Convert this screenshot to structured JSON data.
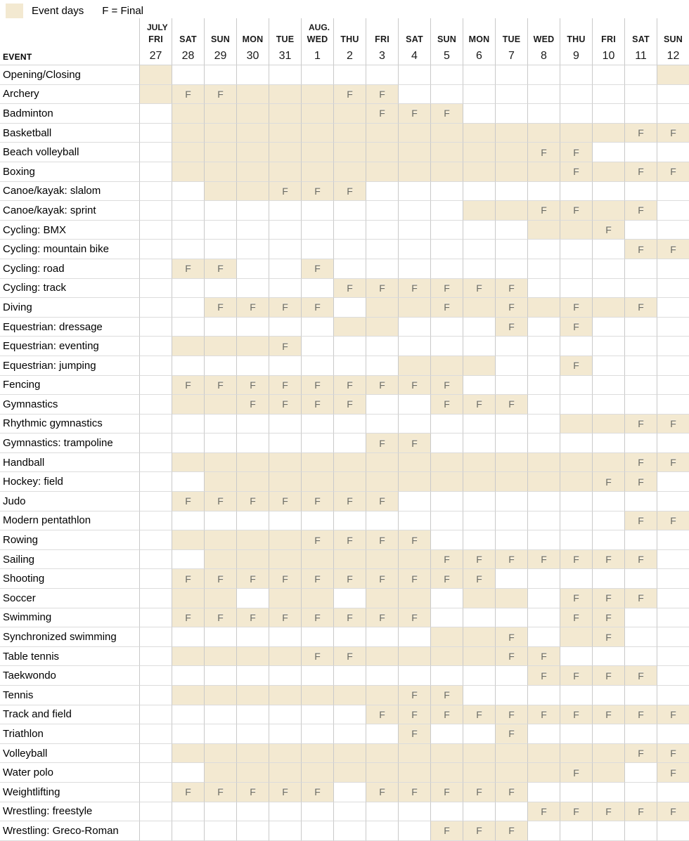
{
  "legend": {
    "event_days_label": "Event days",
    "final_label": "F = Final"
  },
  "colors": {
    "event_day_fill": "#f3e9d1",
    "grid_line_vertical": "#c9c9c9",
    "grid_line_horizontal": "#dcdcdc",
    "final_letter": "#6b6a60",
    "text": "#000000"
  },
  "chart_data": {
    "type": "table",
    "event_header": "EVENT",
    "cell_legend": {
      "s": "event day",
      "F": "final",
      "": "no event"
    },
    "columns": [
      {
        "month": "JULY",
        "day": "FRI",
        "date": "27"
      },
      {
        "month": "",
        "day": "SAT",
        "date": "28"
      },
      {
        "month": "",
        "day": "SUN",
        "date": "29"
      },
      {
        "month": "",
        "day": "MON",
        "date": "30"
      },
      {
        "month": "",
        "day": "TUE",
        "date": "31"
      },
      {
        "month": "AUG.",
        "day": "WED",
        "date": "1"
      },
      {
        "month": "",
        "day": "THU",
        "date": "2"
      },
      {
        "month": "",
        "day": "FRI",
        "date": "3"
      },
      {
        "month": "",
        "day": "SAT",
        "date": "4"
      },
      {
        "month": "",
        "day": "SUN",
        "date": "5"
      },
      {
        "month": "",
        "day": "MON",
        "date": "6"
      },
      {
        "month": "",
        "day": "TUE",
        "date": "7"
      },
      {
        "month": "",
        "day": "WED",
        "date": "8"
      },
      {
        "month": "",
        "day": "THU",
        "date": "9"
      },
      {
        "month": "",
        "day": "FRI",
        "date": "10"
      },
      {
        "month": "",
        "day": "SAT",
        "date": "11"
      },
      {
        "month": "",
        "day": "SUN",
        "date": "12"
      }
    ],
    "rows": [
      {
        "label": "Opening/Closing",
        "cells": [
          "s",
          "",
          "",
          "",
          "",
          "",
          "",
          "",
          "",
          "",
          "",
          "",
          "",
          "",
          "",
          "",
          "s"
        ]
      },
      {
        "label": "Archery",
        "cells": [
          "s",
          "F",
          "F",
          "s",
          "s",
          "s",
          "F",
          "F",
          "",
          "",
          "",
          "",
          "",
          "",
          "",
          "",
          ""
        ]
      },
      {
        "label": "Badminton",
        "cells": [
          "",
          "s",
          "s",
          "s",
          "s",
          "s",
          "s",
          "F",
          "F",
          "F",
          "",
          "",
          "",
          "",
          "",
          "",
          ""
        ]
      },
      {
        "label": "Basketball",
        "cells": [
          "",
          "s",
          "s",
          "s",
          "s",
          "s",
          "s",
          "s",
          "s",
          "s",
          "s",
          "s",
          "s",
          "s",
          "s",
          "F",
          "F"
        ]
      },
      {
        "label": "Beach volleyball",
        "cells": [
          "",
          "s",
          "s",
          "s",
          "s",
          "s",
          "s",
          "s",
          "s",
          "s",
          "s",
          "s",
          "F",
          "F",
          "",
          "",
          ""
        ]
      },
      {
        "label": "Boxing",
        "cells": [
          "",
          "s",
          "s",
          "s",
          "s",
          "s",
          "s",
          "s",
          "s",
          "s",
          "s",
          "s",
          "s",
          "F",
          "s",
          "F",
          "F"
        ]
      },
      {
        "label": "Canoe/kayak: slalom",
        "cells": [
          "",
          "",
          "s",
          "s",
          "F",
          "F",
          "F",
          "",
          "",
          "",
          "",
          "",
          "",
          "",
          "",
          "",
          ""
        ]
      },
      {
        "label": "Canoe/kayak: sprint",
        "cells": [
          "",
          "",
          "",
          "",
          "",
          "",
          "",
          "",
          "",
          "",
          "s",
          "s",
          "F",
          "F",
          "s",
          "F",
          ""
        ]
      },
      {
        "label": "Cycling: BMX",
        "cells": [
          "",
          "",
          "",
          "",
          "",
          "",
          "",
          "",
          "",
          "",
          "",
          "",
          "s",
          "s",
          "F",
          "",
          ""
        ]
      },
      {
        "label": "Cycling: mountain bike",
        "cells": [
          "",
          "",
          "",
          "",
          "",
          "",
          "",
          "",
          "",
          "",
          "",
          "",
          "",
          "",
          "",
          "F",
          "F"
        ]
      },
      {
        "label": "Cycling: road",
        "cells": [
          "",
          "F",
          "F",
          "",
          "",
          "F",
          "",
          "",
          "",
          "",
          "",
          "",
          "",
          "",
          "",
          "",
          ""
        ]
      },
      {
        "label": "Cycling: track",
        "cells": [
          "",
          "",
          "",
          "",
          "",
          "",
          "F",
          "F",
          "F",
          "F",
          "F",
          "F",
          "",
          "",
          "",
          "",
          ""
        ]
      },
      {
        "label": "Diving",
        "cells": [
          "",
          "",
          "F",
          "F",
          "F",
          "F",
          "",
          "s",
          "s",
          "F",
          "s",
          "F",
          "s",
          "F",
          "s",
          "F",
          ""
        ]
      },
      {
        "label": "Equestrian: dressage",
        "cells": [
          "",
          "",
          "",
          "",
          "",
          "",
          "s",
          "s",
          "",
          "",
          "",
          "F",
          "",
          "F",
          "",
          "",
          ""
        ]
      },
      {
        "label": "Equestrian: eventing",
        "cells": [
          "",
          "s",
          "s",
          "s",
          "F",
          "",
          "",
          "",
          "",
          "",
          "",
          "",
          "",
          "",
          "",
          "",
          ""
        ]
      },
      {
        "label": "Equestrian: jumping",
        "cells": [
          "",
          "",
          "",
          "",
          "",
          "",
          "",
          "",
          "s",
          "s",
          "s",
          "",
          "",
          "F",
          "",
          "",
          ""
        ]
      },
      {
        "label": "Fencing",
        "cells": [
          "",
          "F",
          "F",
          "F",
          "F",
          "F",
          "F",
          "F",
          "F",
          "F",
          "",
          "",
          "",
          "",
          "",
          "",
          ""
        ]
      },
      {
        "label": "Gymnastics",
        "cells": [
          "",
          "s",
          "s",
          "F",
          "F",
          "F",
          "F",
          "",
          "",
          "F",
          "F",
          "F",
          "",
          "",
          "",
          "",
          ""
        ]
      },
      {
        "label": "Rhythmic gymnastics",
        "cells": [
          "",
          "",
          "",
          "",
          "",
          "",
          "",
          "",
          "",
          "",
          "",
          "",
          "",
          "s",
          "s",
          "F",
          "F"
        ]
      },
      {
        "label": "Gymnastics: trampoline",
        "cells": [
          "",
          "",
          "",
          "",
          "",
          "",
          "",
          "F",
          "F",
          "",
          "",
          "",
          "",
          "",
          "",
          "",
          ""
        ]
      },
      {
        "label": "Handball",
        "cells": [
          "",
          "s",
          "s",
          "s",
          "s",
          "s",
          "s",
          "s",
          "s",
          "s",
          "s",
          "s",
          "s",
          "s",
          "s",
          "F",
          "F"
        ]
      },
      {
        "label": "Hockey: field",
        "cells": [
          "",
          "",
          "s",
          "s",
          "s",
          "s",
          "s",
          "s",
          "s",
          "s",
          "s",
          "s",
          "s",
          "s",
          "F",
          "F",
          ""
        ]
      },
      {
        "label": "Judo",
        "cells": [
          "",
          "F",
          "F",
          "F",
          "F",
          "F",
          "F",
          "F",
          "",
          "",
          "",
          "",
          "",
          "",
          "",
          "",
          ""
        ]
      },
      {
        "label": "Modern pentathlon",
        "cells": [
          "",
          "",
          "",
          "",
          "",
          "",
          "",
          "",
          "",
          "",
          "",
          "",
          "",
          "",
          "",
          "F",
          "F"
        ]
      },
      {
        "label": "Rowing",
        "cells": [
          "",
          "s",
          "s",
          "s",
          "s",
          "F",
          "F",
          "F",
          "F",
          "",
          "",
          "",
          "",
          "",
          "",
          "",
          ""
        ]
      },
      {
        "label": "Sailing",
        "cells": [
          "",
          "",
          "s",
          "s",
          "s",
          "s",
          "s",
          "s",
          "s",
          "F",
          "F",
          "F",
          "F",
          "F",
          "F",
          "F",
          ""
        ]
      },
      {
        "label": "Shooting",
        "cells": [
          "",
          "F",
          "F",
          "F",
          "F",
          "F",
          "F",
          "F",
          "F",
          "F",
          "F",
          "",
          "",
          "",
          "",
          "",
          ""
        ]
      },
      {
        "label": "Soccer",
        "cells": [
          "",
          "s",
          "s",
          "",
          "s",
          "s",
          "",
          "s",
          "s",
          "",
          "s",
          "s",
          "",
          "F",
          "F",
          "F",
          ""
        ]
      },
      {
        "label": "Swimming",
        "cells": [
          "",
          "F",
          "F",
          "F",
          "F",
          "F",
          "F",
          "F",
          "F",
          "",
          "",
          "",
          "",
          "F",
          "F",
          "",
          ""
        ]
      },
      {
        "label": "Synchronized swimming",
        "cells": [
          "",
          "",
          "",
          "",
          "",
          "",
          "",
          "",
          "",
          "s",
          "s",
          "F",
          "",
          "s",
          "F",
          "",
          ""
        ]
      },
      {
        "label": "Table tennis",
        "cells": [
          "",
          "s",
          "s",
          "s",
          "s",
          "F",
          "F",
          "s",
          "s",
          "s",
          "s",
          "F",
          "F",
          "",
          "",
          "",
          ""
        ]
      },
      {
        "label": "Taekwondo",
        "cells": [
          "",
          "",
          "",
          "",
          "",
          "",
          "",
          "",
          "",
          "",
          "",
          "",
          "F",
          "F",
          "F",
          "F",
          ""
        ]
      },
      {
        "label": "Tennis",
        "cells": [
          "",
          "s",
          "s",
          "s",
          "s",
          "s",
          "s",
          "s",
          "F",
          "F",
          "",
          "",
          "",
          "",
          "",
          "",
          ""
        ]
      },
      {
        "label": "Track and field",
        "cells": [
          "",
          "",
          "",
          "",
          "",
          "",
          "",
          "F",
          "F",
          "F",
          "F",
          "F",
          "F",
          "F",
          "F",
          "F",
          "F"
        ]
      },
      {
        "label": "Triathlon",
        "cells": [
          "",
          "",
          "",
          "",
          "",
          "",
          "",
          "",
          "F",
          "",
          "",
          "F",
          "",
          "",
          "",
          "",
          ""
        ]
      },
      {
        "label": "Volleyball",
        "cells": [
          "",
          "s",
          "s",
          "s",
          "s",
          "s",
          "s",
          "s",
          "s",
          "s",
          "s",
          "s",
          "s",
          "s",
          "s",
          "F",
          "F"
        ]
      },
      {
        "label": "Water polo",
        "cells": [
          "",
          "",
          "s",
          "s",
          "s",
          "s",
          "s",
          "s",
          "s",
          "s",
          "s",
          "s",
          "s",
          "F",
          "s",
          "",
          "F"
        ]
      },
      {
        "label": "Weightlifting",
        "cells": [
          "",
          "F",
          "F",
          "F",
          "F",
          "F",
          "",
          "F",
          "F",
          "F",
          "F",
          "F",
          "",
          "",
          "",
          "",
          ""
        ]
      },
      {
        "label": "Wrestling: freestyle",
        "cells": [
          "",
          "",
          "",
          "",
          "",
          "",
          "",
          "",
          "",
          "",
          "",
          "",
          "F",
          "F",
          "F",
          "F",
          "F"
        ]
      },
      {
        "label": "Wrestling: Greco-Roman",
        "cells": [
          "",
          "",
          "",
          "",
          "",
          "",
          "",
          "",
          "",
          "F",
          "F",
          "F",
          "",
          "",
          "",
          "",
          ""
        ]
      }
    ]
  }
}
